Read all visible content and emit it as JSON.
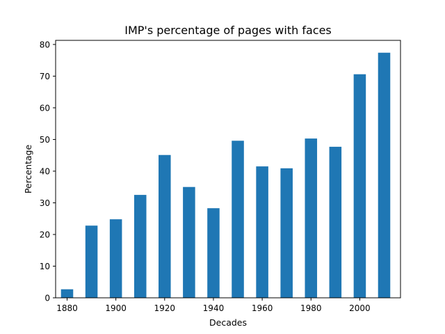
{
  "chart_data": {
    "type": "bar",
    "title": "IMP's percentage of pages with faces",
    "xlabel": "Decades",
    "ylabel": "Percentage",
    "x": [
      1880,
      1890,
      1900,
      1910,
      1920,
      1930,
      1940,
      1950,
      1960,
      1970,
      1980,
      1990,
      2000,
      2010
    ],
    "values": [
      2.7,
      22.8,
      24.8,
      32.5,
      45.1,
      35.0,
      28.3,
      49.6,
      41.5,
      40.9,
      50.3,
      47.7,
      70.6,
      77.4
    ],
    "bar_width": 5,
    "xlim": [
      1875.3,
      2016.7
    ],
    "ylim": [
      0,
      81.3
    ],
    "xticks": [
      1880,
      1900,
      1920,
      1940,
      1960,
      1980,
      2000
    ],
    "yticks": [
      0,
      10,
      20,
      30,
      40,
      50,
      60,
      70,
      80
    ],
    "grid": false,
    "legend": "none",
    "bar_color": "#1f77b4"
  }
}
